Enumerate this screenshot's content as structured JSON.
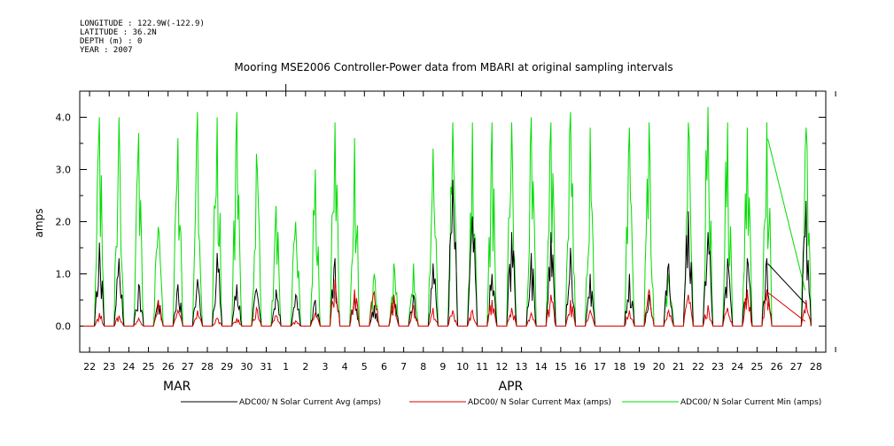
{
  "meta": {
    "longitude": "LONGITUDE : 122.9W(-122.9)",
    "latitude": "LATITUDE : 36.2N",
    "depth": "DEPTH (m) : 0",
    "year": "YEAR : 2007"
  },
  "chart_data": {
    "type": "line",
    "title": "Mooring MSE2006 Controller-Power data from MBARI at original sampling intervals",
    "xlabel": "",
    "ylabel": "amps",
    "ylim": [
      -0.5,
      4.5
    ],
    "yticks": [
      "4.0",
      "3.0",
      "2.0",
      "1.0",
      "0.0"
    ],
    "ytick_values": [
      4.0,
      3.0,
      2.0,
      1.0,
      0.0
    ],
    "xlim": [
      "2007-03-21T12:00",
      "2007-04-28T12:00"
    ],
    "xtick_labels": [
      "22",
      "23",
      "24",
      "25",
      "26",
      "27",
      "28",
      "29",
      "30",
      "31",
      "1",
      "2",
      "3",
      "4",
      "5",
      "6",
      "7",
      "8",
      "9",
      "10",
      "11",
      "12",
      "13",
      "14",
      "15",
      "16",
      "17",
      "18",
      "19",
      "20",
      "21",
      "22",
      "23",
      "24",
      "25",
      "26",
      "27",
      "28"
    ],
    "month_labels": [
      {
        "label": "MAR",
        "date": "2007-03-26"
      },
      {
        "label": "APR",
        "date": "2007-04-12"
      }
    ],
    "legend_placement": "bottom",
    "series": [
      {
        "name": "ADC00/ N Solar Current Avg (amps)",
        "color": "#000000",
        "daily_peak": [
          1.6,
          1.3,
          0.8,
          0.5,
          0.8,
          0.9,
          1.4,
          0.8,
          0.7,
          0.7,
          0.6,
          0.5,
          1.3,
          0.6,
          0.4,
          0.6,
          0.6,
          1.2,
          2.8,
          2.1,
          1.0,
          1.8,
          1.4,
          1.8,
          1.5,
          1.0,
          0,
          1.0,
          0.6,
          1.2,
          2.2,
          1.8,
          1.3,
          1.3,
          1.3,
          null,
          2.4
        ]
      },
      {
        "name": "ADC00/ N Solar Current Max (amps)",
        "color": "#dd0000",
        "daily_peak": [
          0.25,
          0.2,
          0.15,
          0.5,
          0.3,
          0.3,
          0.15,
          0.15,
          0.35,
          0.2,
          0.1,
          0.25,
          0.9,
          0.7,
          0.65,
          0.6,
          0.4,
          0.35,
          0.3,
          0.3,
          0.5,
          0.35,
          0.25,
          0.6,
          0.5,
          0.3,
          0,
          0.3,
          0.7,
          0.3,
          0.6,
          0.4,
          0.35,
          0.7,
          0.7,
          null,
          0.5
        ]
      },
      {
        "name": "ADC00/ N Solar Current Min (amps)",
        "color": "#00dd00",
        "daily_peak": [
          4.0,
          4.0,
          3.7,
          1.9,
          3.6,
          4.1,
          4.0,
          4.1,
          3.3,
          2.3,
          2.0,
          3.0,
          3.9,
          3.6,
          1.0,
          1.2,
          1.2,
          3.4,
          3.9,
          3.9,
          3.9,
          3.9,
          4.0,
          3.9,
          4.1,
          3.8,
          0,
          3.8,
          3.9,
          1.0,
          3.9,
          4.2,
          3.9,
          3.8,
          3.9,
          null,
          3.8
        ]
      }
    ]
  }
}
